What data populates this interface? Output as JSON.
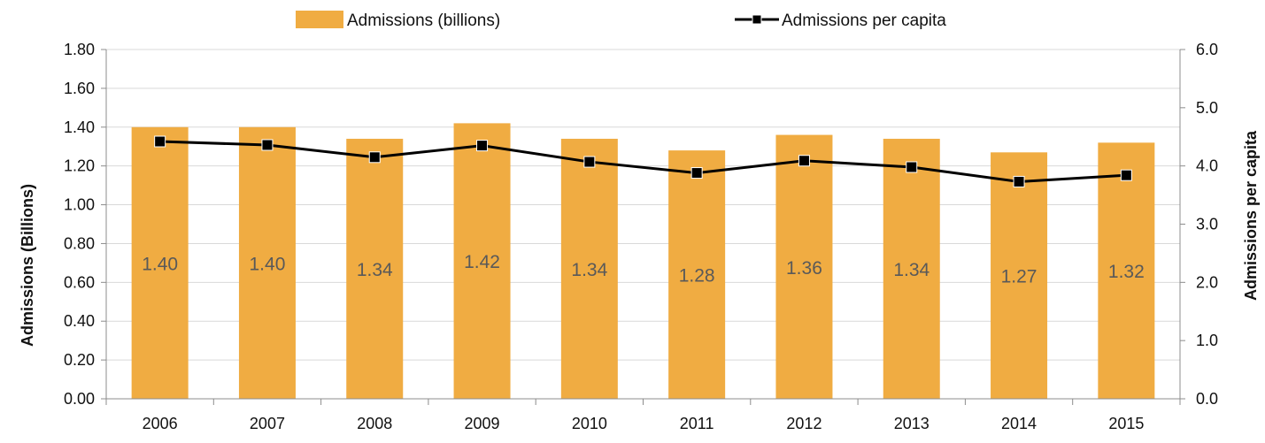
{
  "chart_data": {
    "type": "bar",
    "categories": [
      "2006",
      "2007",
      "2008",
      "2009",
      "2010",
      "2011",
      "2012",
      "2013",
      "2014",
      "2015"
    ],
    "series": [
      {
        "name": "Admissions (billions)",
        "type": "bar",
        "axis": "left",
        "values": [
          1.4,
          1.4,
          1.34,
          1.42,
          1.34,
          1.28,
          1.36,
          1.34,
          1.27,
          1.32
        ],
        "data_labels": [
          "1.40",
          "1.40",
          "1.34",
          "1.42",
          "1.34",
          "1.28",
          "1.36",
          "1.34",
          "1.27",
          "1.32"
        ],
        "color": "#F0AC42"
      },
      {
        "name": "Admissions per capita",
        "type": "line",
        "axis": "right",
        "values": [
          4.42,
          4.36,
          4.15,
          4.35,
          4.07,
          3.88,
          4.09,
          3.98,
          3.73,
          3.84
        ],
        "color": "#000000",
        "marker": "square"
      }
    ],
    "ylabel": "Admissions (Billions)",
    "y2label": "Admissions per capita",
    "ylim": [
      0,
      1.8
    ],
    "y2lim": [
      0,
      6.0
    ],
    "yticks": [
      "0.00",
      "0.20",
      "0.40",
      "0.60",
      "0.80",
      "1.00",
      "1.20",
      "1.40",
      "1.60",
      "1.80"
    ],
    "y2ticks": [
      "0.0",
      "1.0",
      "2.0",
      "3.0",
      "4.0",
      "5.0",
      "6.0"
    ],
    "grid": true,
    "legend": "top-center",
    "colors": {
      "bar": "#F0AC42",
      "line": "#000000",
      "grid": "#D9D9D9",
      "axis": "#8C8C8C",
      "data_label": "#595959"
    }
  }
}
